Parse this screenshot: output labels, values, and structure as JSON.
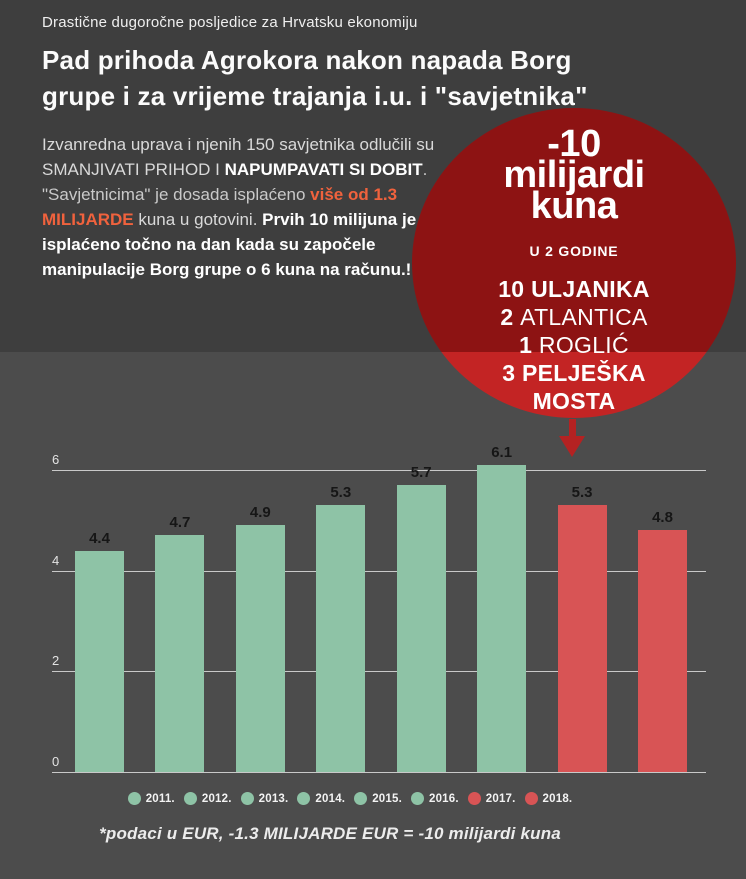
{
  "header": {
    "kicker": "Drastične dugoročne posljedice za Hrvatsku ekonomiju",
    "title_line1": "Pad prihoda Agrokora nakon napada Borg",
    "title_line2": "grupe i za vrijeme trajanja i.u. i \"savjetnika\"",
    "paragraph": {
      "seg1": "Izvanredna uprava i njenih 150 savjetnika odlučili su SMANJIVATI PRIHOD I ",
      "seg2": "NAPUMPAVATI  SI DOBIT",
      "seg3": ". \"Savjetnicima\" je dosada isplaćeno ",
      "seg4": "više od 1.3 MILIJARDE",
      "seg5": " kuna u gotovini.  ",
      "seg6": "Prvih 10 milijuna je isplaćeno točno na dan kada su započele manipulacije Borg grupe o 6 kuna na računu.!"
    }
  },
  "badge": {
    "big_line1": "-10",
    "big_line2": "milijardi",
    "big_line3": "kuna",
    "subtitle": "U 2 GODINE",
    "items": [
      {
        "num": "10 ",
        "text": "ULJANIKA"
      },
      {
        "num": "2 ",
        "text": "ATLANTICA"
      },
      {
        "num": "1 ",
        "text": "ROGLIĆ"
      },
      {
        "num": "3 ",
        "text": "PELJEŠKA"
      },
      {
        "num": "",
        "text": "MOSTA"
      }
    ]
  },
  "chart_data": {
    "type": "bar",
    "categories": [
      "2011.",
      "2012.",
      "2013.",
      "2014.",
      "2015.",
      "2016.",
      "2017.",
      "2018."
    ],
    "values": [
      4.4,
      4.7,
      4.9,
      5.3,
      5.7,
      6.1,
      5.3,
      4.8
    ],
    "bar_colors": [
      "#8ec3a6",
      "#8ec3a6",
      "#8ec3a6",
      "#8ec3a6",
      "#8ec3a6",
      "#8ec3a6",
      "#d85455",
      "#d85455"
    ],
    "value_labels": [
      "4.4",
      "4.7",
      "4.9",
      "5.3",
      "5.7",
      "6.1",
      "5.3",
      "4.8"
    ],
    "yticks": [
      0,
      2,
      4,
      6
    ],
    "ylim": [
      0,
      6.5
    ],
    "grid": true,
    "legend_position": "bottom",
    "title": "",
    "xlabel": "",
    "ylabel": ""
  },
  "footnote": "*podaci u EUR, -1.3 MILIJARDE EUR =  -10 milijardi kuna",
  "colors": {
    "header_bg": "#3e3e3e",
    "chart_bg": "#4c4c4c",
    "circle_top_red": "#8d1313",
    "circle_bottom_red": "#c32424",
    "arrow_red": "#b42222",
    "accent_orange": "#f0623d",
    "gridline": "#c9c9c9",
    "tick_text": "#e3e3e3",
    "bar_green": "#8ec3a6",
    "bar_red": "#d85455"
  }
}
